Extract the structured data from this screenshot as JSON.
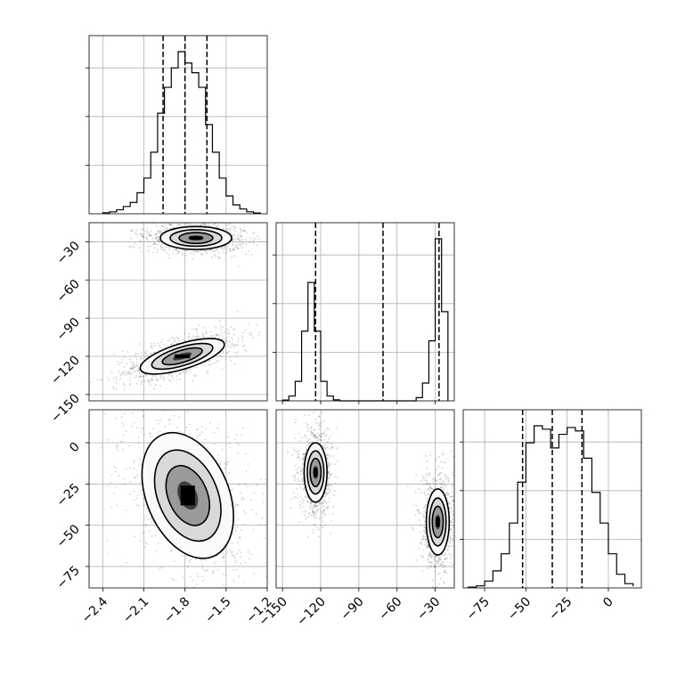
{
  "chart_data": {
    "type": "corner",
    "title": "",
    "grid": true,
    "parameters": [
      {
        "index": 0,
        "label": "",
        "range": [
          -2.5,
          -1.2
        ],
        "ticks": [
          -2.4,
          -2.1,
          -1.8,
          -1.5,
          -1.2
        ],
        "tick_labels": [
          "−2.4",
          "−2.1",
          "−1.8",
          "−1.5",
          "−1.2"
        ],
        "quantiles": [
          -1.96,
          -1.8,
          -1.64
        ]
      },
      {
        "index": 1,
        "label": "",
        "range": [
          -155,
          -15
        ],
        "ticks": [
          -150,
          -120,
          -90,
          -60,
          -30
        ],
        "tick_labels": [
          "−150",
          "−120",
          "−90",
          "−60",
          "−30"
        ],
        "quantiles": [
          -124,
          -71,
          -27
        ]
      },
      {
        "index": 2,
        "label": "",
        "range": [
          -88,
          20
        ],
        "ticks": [
          -75,
          -50,
          -25,
          0
        ],
        "tick_labels": [
          "−75",
          "−50",
          "−25",
          "0"
        ],
        "quantiles": [
          -52,
          -34,
          -16
        ]
      }
    ],
    "histograms": [
      {
        "param": 0,
        "bin_edges": [
          -2.4,
          -2.35,
          -2.3,
          -2.25,
          -2.2,
          -2.15,
          -2.1,
          -2.05,
          -2.0,
          -1.95,
          -1.9,
          -1.85,
          -1.8,
          -1.75,
          -1.7,
          -1.65,
          -1.6,
          -1.55,
          -1.5,
          -1.45,
          -1.4,
          -1.35,
          -1.3,
          -1.25
        ],
        "counts": [
          0.006,
          0.012,
          0.025,
          0.045,
          0.07,
          0.13,
          0.22,
          0.38,
          0.62,
          0.78,
          0.9,
          1.0,
          0.93,
          0.87,
          0.78,
          0.55,
          0.38,
          0.22,
          0.11,
          0.055,
          0.03,
          0.012,
          0.005
        ]
      },
      {
        "param": 1,
        "bin_edges": [
          -150,
          -145,
          -140,
          -135,
          -130,
          -125,
          -120,
          -115,
          -110,
          -105,
          -100,
          -95,
          -90,
          -85,
          -80,
          -75,
          -70,
          -65,
          -60,
          -55,
          -50,
          -45,
          -40,
          -35,
          -30,
          -25,
          -20
        ],
        "counts": [
          0.005,
          0.03,
          0.12,
          0.43,
          0.73,
          0.43,
          0.12,
          0.03,
          0.006,
          0,
          0,
          0,
          0,
          0,
          0,
          0,
          0,
          0,
          0,
          0,
          0,
          0.02,
          0.11,
          0.37,
          1.0,
          0.55
        ]
      },
      {
        "param": 2,
        "bin_edges": [
          -85,
          -80,
          -75,
          -70,
          -65,
          -60,
          -55,
          -50,
          -45,
          -40,
          -35,
          -30,
          -25,
          -20,
          -15,
          -10,
          -5,
          0,
          5,
          10,
          15
        ],
        "counts": [
          0.005,
          0.012,
          0.04,
          0.1,
          0.2,
          0.38,
          0.62,
          0.85,
          0.95,
          0.93,
          0.82,
          0.9,
          0.94,
          0.92,
          0.76,
          0.56,
          0.38,
          0.2,
          0.08,
          0.025,
          0.01
        ]
      }
    ],
    "density_panels": [
      {
        "x_param": 0,
        "y_param": 1,
        "modes": [
          {
            "cx": -1.72,
            "cy": -27,
            "sx": 0.13,
            "sy": 4.5,
            "rot": 0
          },
          {
            "cx": -1.82,
            "cy": -120,
            "sx": 0.16,
            "sy": 5,
            "rot": -0.3
          }
        ]
      },
      {
        "x_param": 0,
        "y_param": 2,
        "modes": [
          {
            "cx": -1.78,
            "cy": -32,
            "sx": 0.15,
            "sy": 20,
            "rot": -0.4
          }
        ]
      },
      {
        "x_param": 1,
        "y_param": 2,
        "modes": [
          {
            "cx": -124,
            "cy": -18,
            "sx": 4.5,
            "sy": 9,
            "rot": 0
          },
          {
            "cx": -28,
            "cy": -48,
            "sx": 4.5,
            "sy": 10,
            "rot": 0
          }
        ]
      }
    ]
  }
}
